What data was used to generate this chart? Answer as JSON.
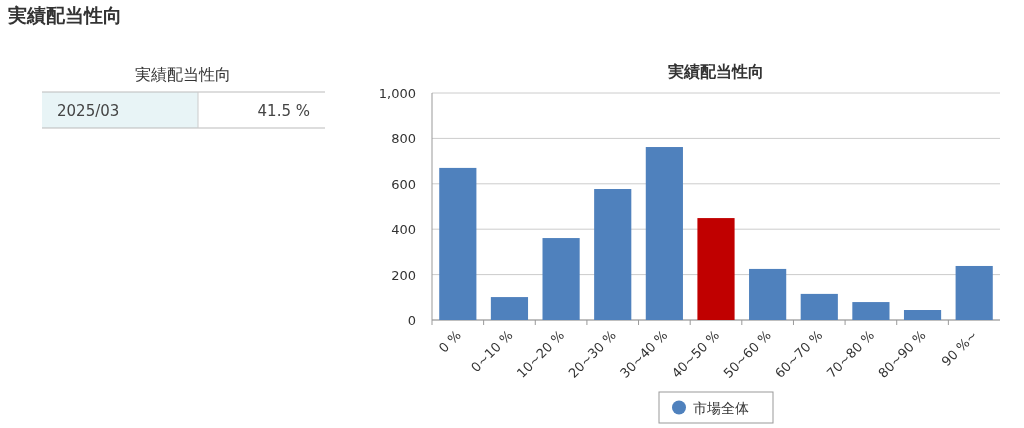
{
  "chart_data": [
    {
      "type": "other",
      "title": "実績配当性向",
      "subtitle": "実績配当性向",
      "annotations": [
        "2025/03",
        "41.5 %"
      ]
    },
    {
      "type": "bar",
      "title": "実績配当性向",
      "categories": [
        "0 %",
        "0~10 %",
        "10~20 %",
        "20~30 %",
        "30~40 %",
        "40~50 %",
        "50~60 %",
        "60~70 %",
        "70~80 %",
        "80~90 %",
        "90 %~"
      ],
      "series": [
        {
          "name": "市場全体",
          "color": "#4f81bd",
          "values": [
            670,
            101,
            361,
            577,
            762,
            null,
            225,
            115,
            79,
            44,
            238
          ]
        },
        {
          "color": "#c00000",
          "values": [
            null,
            null,
            null,
            null,
            null,
            449,
            null,
            null,
            null,
            null,
            null
          ]
        }
      ],
      "ylim": [
        0,
        1000
      ],
      "yticks": [
        0,
        200,
        400,
        600,
        800,
        {
          "value": 1000,
          "label": "1,000"
        }
      ],
      "grid": "y",
      "legend": "bottom"
    }
  ]
}
